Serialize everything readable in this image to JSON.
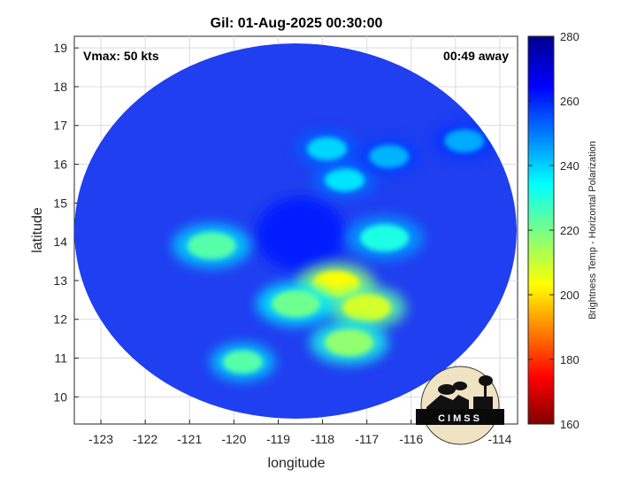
{
  "chart_data": {
    "type": "heatmap",
    "title": "Gil: 01-Aug-2025 00:30:00",
    "xlabel": "longitude",
    "ylabel": "latitude",
    "xlim": [
      -123.6,
      -113.6
    ],
    "ylim": [
      9.3,
      19.3
    ],
    "xticks": [
      -123,
      -122,
      -121,
      -120,
      -119,
      -118,
      -117,
      -116,
      -115,
      -114
    ],
    "yticks": [
      10,
      11,
      12,
      13,
      14,
      15,
      16,
      17,
      18,
      19
    ],
    "grid": true,
    "annotations": {
      "left": "Vmax: 50 kts",
      "right": "00:49 away"
    },
    "colorbar": {
      "label": "Brightness Temp - Horizontal Polarization",
      "range": [
        160,
        280
      ],
      "ticks": [
        160,
        180,
        200,
        220,
        240,
        260,
        280
      ],
      "colormap": "jet"
    },
    "swath_center": [
      -118.6,
      14.3
    ],
    "features": [
      {
        "name": "eye",
        "lon": -118.5,
        "lat": 14.2,
        "tb": 262
      },
      {
        "name": "inner-band",
        "lon": -117.7,
        "lat": 12.9,
        "tb": 205
      },
      {
        "name": "inner-band",
        "lon": -117.0,
        "lat": 12.3,
        "tb": 210
      },
      {
        "name": "inner-band",
        "lon": -117.4,
        "lat": 11.4,
        "tb": 218
      },
      {
        "name": "inner-band",
        "lon": -118.6,
        "lat": 12.4,
        "tb": 222
      },
      {
        "name": "inner-band",
        "lon": -120.5,
        "lat": 13.9,
        "tb": 225
      },
      {
        "name": "inner-band",
        "lon": -116.6,
        "lat": 14.1,
        "tb": 232
      },
      {
        "name": "outer-band",
        "lon": -117.5,
        "lat": 15.6,
        "tb": 238
      },
      {
        "name": "outer-band",
        "lon": -117.9,
        "lat": 16.4,
        "tb": 240
      },
      {
        "name": "outer-band",
        "lon": -116.5,
        "lat": 16.2,
        "tb": 244
      },
      {
        "name": "outer-band",
        "lon": -119.8,
        "lat": 10.9,
        "tb": 225
      },
      {
        "name": "outer-band",
        "lon": -114.8,
        "lat": 16.6,
        "tb": 245
      }
    ]
  },
  "logo": {
    "text": "CIMSS"
  },
  "colors": {
    "background": "#ffffff",
    "grid": "#dcdcdc",
    "axis": "#262626"
  }
}
